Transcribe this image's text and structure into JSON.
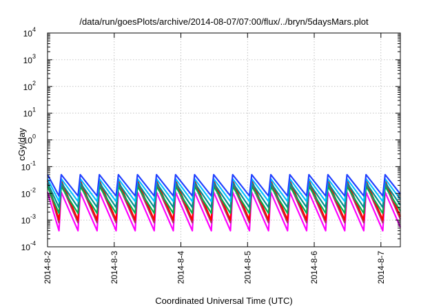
{
  "chart_data": {
    "type": "line",
    "title": "/data/run/goesPlots/archive/2014-08-07/07:00/flux/../bryn/5daysMars.plot",
    "xlabel": "Coordinated Universal Time (UTC)",
    "ylabel": "cGy/day",
    "yscale": "log",
    "ylim": [
      0.0001,
      10000
    ],
    "xlim": [
      "2014-08-02T00:00",
      "2014-08-07T07:00"
    ],
    "grid": true,
    "legend": "none",
    "x_tick_labels": [
      "2014-8-2",
      "2014-8-3",
      "2014-8-4",
      "2014-8-5",
      "2014-8-6",
      "2014-8-7"
    ],
    "y_tick_labels": [
      {
        "base": "10",
        "exp": "-4"
      },
      {
        "base": "10",
        "exp": "-3"
      },
      {
        "base": "10",
        "exp": "-2"
      },
      {
        "base": "10",
        "exp": "-1"
      },
      {
        "base": "10",
        "exp": "0"
      },
      {
        "base": "10",
        "exp": "1"
      },
      {
        "base": "10",
        "exp": "2"
      },
      {
        "base": "10",
        "exp": "3"
      },
      {
        "base": "10",
        "exp": "4"
      }
    ],
    "pattern": {
      "description": "sawtooth: sharp rise then decay, about 3.5 cycles per day",
      "cycles_per_day": 3.5
    },
    "series": [
      {
        "color": "#ff00ff",
        "low": 0.0004,
        "high": 0.011
      },
      {
        "color": "#b03060",
        "low": 0.0008,
        "high": 0.022
      },
      {
        "color": "#ff0000",
        "low": 0.001,
        "high": 0.03
      },
      {
        "color": "#00b050",
        "low": 0.0018,
        "high": 0.018
      },
      {
        "color": "#009090",
        "low": 0.003,
        "high": 0.025
      },
      {
        "color": "#00c0ff",
        "low": 0.005,
        "high": 0.035
      },
      {
        "color": "#2040ff",
        "low": 0.008,
        "high": 0.05
      }
    ]
  }
}
